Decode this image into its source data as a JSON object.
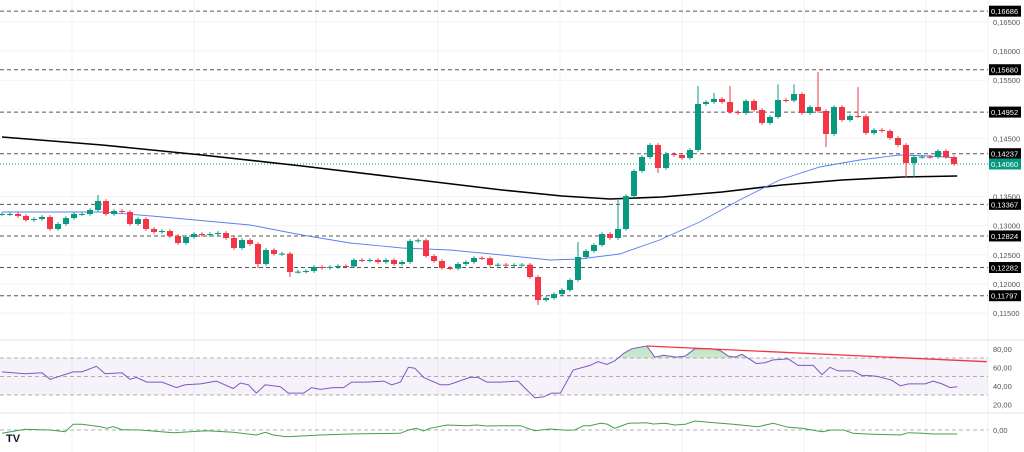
{
  "chart_data": [
    {
      "type": "candlestick",
      "title": "",
      "ylim": [
        0.1135,
        0.169
      ],
      "grid": true,
      "price_axis_ticks": [
        "0,16500",
        "0,16000",
        "0,15500",
        "0,14500",
        "0,13500",
        "0,13000",
        "0,12500",
        "0,12000",
        "0,11500"
      ],
      "price_axis_tick_values": [
        0.165,
        0.16,
        0.155,
        0.145,
        0.135,
        0.13,
        0.125,
        0.12,
        0.115
      ],
      "levels": [
        {
          "value": 0.16686,
          "label": "0,16686"
        },
        {
          "value": 0.1568,
          "label": "0,15680"
        },
        {
          "value": 0.14952,
          "label": "0,14952"
        },
        {
          "value": 0.14237,
          "label": "0,14237"
        },
        {
          "value": 0.13367,
          "label": "0,13367"
        },
        {
          "value": 0.12824,
          "label": "0,12824"
        },
        {
          "value": 0.12282,
          "label": "0,12282"
        },
        {
          "value": 0.11797,
          "label": "0,11797"
        }
      ],
      "last_price": {
        "value": 0.1406,
        "label": "0,14060"
      },
      "close": [
        0.13201,
        0.13201,
        0.13167,
        0.13098,
        0.13115,
        0.1315,
        0.12943,
        0.13029,
        0.13132,
        0.13201,
        0.13201,
        0.1327,
        0.13424,
        0.13201,
        0.13253,
        0.13236,
        0.13029,
        0.13115,
        0.12943,
        0.12892,
        0.12909,
        0.12823,
        0.12703,
        0.12806,
        0.12857,
        0.1284,
        0.12857,
        0.12875,
        0.12789,
        0.12617,
        0.12754,
        0.12686,
        0.12342,
        0.12582,
        0.12514,
        0.1252,
        0.12204,
        0.1221,
        0.12222,
        0.1229,
        0.12273,
        0.1229,
        0.12308,
        0.123,
        0.12411,
        0.12405,
        0.12411,
        0.12376,
        0.12411,
        0.12342,
        0.12376,
        0.12737,
        0.1275,
        0.12479,
        0.12393,
        0.12273,
        0.12265,
        0.12342,
        0.12376,
        0.12445,
        0.1244,
        0.12325,
        0.1233,
        0.1232,
        0.12325,
        0.1233,
        0.12118,
        0.11723,
        0.11758,
        0.11826,
        0.11895,
        0.12067,
        0.12462,
        0.12565,
        0.12668,
        0.12857,
        0.12789,
        0.12943,
        0.1351,
        0.1394,
        0.1418,
        0.14387,
        0.13991,
        0.14232,
        0.14215,
        0.14163,
        0.14301,
        0.15091,
        0.15125,
        0.15177,
        0.15125,
        0.14954,
        0.14936,
        0.15143,
        0.14988,
        0.14765,
        0.14868,
        0.1516,
        0.1515,
        0.15263,
        0.14936,
        0.1504,
        0.14971,
        0.14576,
        0.1504,
        0.14816,
        0.14885,
        0.1488,
        0.14593,
        0.14644,
        0.14627,
        0.14507,
        0.14387,
        0.14077,
        0.1418,
        0.14185,
        0.1418,
        0.14284,
        0.1418,
        0.1406
      ],
      "high_overrides": {
        "12": 0.13527,
        "72": 0.1272,
        "77": 0.1344,
        "87": 0.154,
        "89": 0.1528,
        "91": 0.154,
        "97": 0.1543,
        "99": 0.1543,
        "102": 0.1564,
        "107": 0.1538
      },
      "low_overrides": {
        "32": 0.12273,
        "36": 0.1212,
        "67": 0.11637,
        "82": 0.13906,
        "103": 0.14352,
        "113": 0.1382,
        "114": 0.1382
      },
      "moving_averages": [
        {
          "color": "#000000",
          "points": [
            [
              0,
              0.14524
            ],
            [
              12.5,
              0.14387
            ],
            [
              25,
              0.14215
            ],
            [
              37.5,
              0.14026
            ],
            [
              50,
              0.1382
            ],
            [
              62.5,
              0.13613
            ],
            [
              70,
              0.1351
            ],
            [
              76,
              0.13459
            ],
            [
              82.5,
              0.13493
            ],
            [
              90,
              0.13579
            ],
            [
              97.5,
              0.13699
            ],
            [
              105,
              0.13785
            ],
            [
              112.5,
              0.13837
            ],
            [
              119.4,
              0.13854
            ]
          ]
        },
        {
          "color": "#5b7ff2",
          "points": [
            [
              0,
              0.13236
            ],
            [
              12.5,
              0.13236
            ],
            [
              18.7,
              0.13167
            ],
            [
              31,
              0.13012
            ],
            [
              37.5,
              0.1284
            ],
            [
              43.5,
              0.12703
            ],
            [
              50,
              0.12617
            ],
            [
              56,
              0.12582
            ],
            [
              62.5,
              0.12497
            ],
            [
              68.5,
              0.12411
            ],
            [
              72.2,
              0.12428
            ],
            [
              77.2,
              0.12514
            ],
            [
              82.2,
              0.12754
            ],
            [
              87.2,
              0.13064
            ],
            [
              92.2,
              0.13442
            ],
            [
              97.2,
              0.13785
            ],
            [
              102.2,
              0.14009
            ],
            [
              107.2,
              0.14129
            ],
            [
              112.2,
              0.14215
            ],
            [
              116,
              0.14198
            ],
            [
              119.4,
              0.14163
            ]
          ]
        }
      ],
      "colors": {
        "up": "#089981",
        "down": "#f23645",
        "level_box": "#000000",
        "last_price": "#089981"
      }
    },
    {
      "type": "line",
      "title": "",
      "ylim": [
        10,
        90
      ],
      "ticks": [
        "80,00",
        "60,00",
        "40,00",
        "20,00"
      ],
      "tick_values": [
        80,
        60,
        40,
        20
      ],
      "band": [
        30,
        70
      ],
      "midline": 50,
      "color": "#7e57c2",
      "points": [
        [
          0,
          55
        ],
        [
          2.9,
          53
        ],
        [
          5.0,
          54
        ],
        [
          6.0,
          47
        ],
        [
          8.9,
          55
        ],
        [
          10.0,
          55
        ],
        [
          11.8,
          61
        ],
        [
          12.9,
          53
        ],
        [
          15.0,
          54
        ],
        [
          16.0,
          47
        ],
        [
          16.8,
          49
        ],
        [
          18.1,
          44
        ],
        [
          20.0,
          44
        ],
        [
          21.8,
          38
        ],
        [
          22.9,
          41
        ],
        [
          24.8,
          42
        ],
        [
          26.8,
          45
        ],
        [
          28.9,
          37
        ],
        [
          29.8,
          43
        ],
        [
          30.8,
          41
        ],
        [
          31.8,
          32
        ],
        [
          32.9,
          41
        ],
        [
          34.8,
          39
        ],
        [
          35.8,
          32
        ],
        [
          37.7,
          32
        ],
        [
          38.7,
          38
        ],
        [
          39.8,
          36
        ],
        [
          41.4,
          38
        ],
        [
          42.7,
          38
        ],
        [
          43.7,
          44
        ],
        [
          45.6,
          44
        ],
        [
          47.7,
          45
        ],
        [
          48.7,
          41
        ],
        [
          49.8,
          44
        ],
        [
          50.8,
          60
        ],
        [
          51.6,
          59
        ],
        [
          52.7,
          49
        ],
        [
          54.8,
          41
        ],
        [
          55.8,
          41
        ],
        [
          56.8,
          44
        ],
        [
          58.5,
          49
        ],
        [
          59.5,
          49
        ],
        [
          60.6,
          44
        ],
        [
          62.3,
          44
        ],
        [
          64.5,
          45
        ],
        [
          66.6,
          27
        ],
        [
          67.7,
          28
        ],
        [
          68.7,
          32
        ],
        [
          69.8,
          32
        ],
        [
          71.4,
          57
        ],
        [
          73.5,
          62
        ],
        [
          74.5,
          66
        ],
        [
          75.6,
          63
        ],
        [
          76.6,
          67
        ],
        [
          77.7,
          75
        ],
        [
          78.7,
          80
        ],
        [
          80.6,
          83
        ],
        [
          81.6,
          71
        ],
        [
          82.7,
          73
        ],
        [
          84.3,
          71
        ],
        [
          85.4,
          72
        ],
        [
          86.6,
          80
        ],
        [
          88.7,
          80
        ],
        [
          89.8,
          78
        ],
        [
          90.8,
          72
        ],
        [
          91.6,
          71
        ],
        [
          92.5,
          74
        ],
        [
          94.3,
          64
        ],
        [
          95.4,
          65
        ],
        [
          96.4,
          68
        ],
        [
          98.3,
          69
        ],
        [
          99.5,
          62
        ],
        [
          101.4,
          62
        ],
        [
          102.5,
          52
        ],
        [
          103.5,
          60
        ],
        [
          104.5,
          56
        ],
        [
          106.4,
          56
        ],
        [
          107.5,
          51
        ],
        [
          108.5,
          51
        ],
        [
          109.5,
          50
        ],
        [
          111.2,
          46
        ],
        [
          112.3,
          40
        ],
        [
          113.3,
          42
        ],
        [
          115.4,
          42
        ],
        [
          116.4,
          45
        ],
        [
          117.5,
          42
        ],
        [
          118.5,
          38
        ],
        [
          119.4,
          39
        ]
      ],
      "trendline": {
        "color": "#f23645",
        "from": [
          80.6,
          83
        ],
        "to": [
          123.1,
          66
        ]
      },
      "overbought_fill_color": "#4caf50"
    },
    {
      "type": "line",
      "title": "",
      "ticks": [
        "0,00"
      ],
      "tick_values": [
        0
      ],
      "color": "#43a047",
      "points": [
        [
          0,
          -0.0033
        ],
        [
          2.9,
          0.0007
        ],
        [
          6.0,
          0.0
        ],
        [
          7.9,
          -0.0017
        ],
        [
          8.9,
          0.0057
        ],
        [
          10.0,
          0.0057
        ],
        [
          12.3,
          0.0033
        ],
        [
          13.1,
          0.0017
        ],
        [
          13.9,
          0.0033
        ],
        [
          15.0,
          0.0003
        ],
        [
          17.3,
          0.0
        ],
        [
          21.4,
          -0.0027
        ],
        [
          25.6,
          -0.0007
        ],
        [
          28.9,
          -0.0023
        ],
        [
          31.8,
          -0.005
        ],
        [
          32.9,
          -0.0023
        ],
        [
          33.9,
          -0.005
        ],
        [
          35.6,
          -0.0067
        ],
        [
          39.8,
          -0.005
        ],
        [
          43.5,
          -0.004
        ],
        [
          49.8,
          -0.0033
        ],
        [
          50.8,
          0.0
        ],
        [
          51.8,
          0.0017
        ],
        [
          52.7,
          -0.001
        ],
        [
          53.5,
          0.0017
        ],
        [
          55.6,
          0.005
        ],
        [
          58.1,
          0.0043
        ],
        [
          59.3,
          0.005
        ],
        [
          60.6,
          0.004
        ],
        [
          62.3,
          0.0043
        ],
        [
          64.8,
          0.0043
        ],
        [
          66.6,
          -0.0007
        ],
        [
          68.5,
          0.001
        ],
        [
          70.6,
          -0.0003
        ],
        [
          71.6,
          0.0
        ],
        [
          72.7,
          0.0043
        ],
        [
          73.5,
          0.0043
        ],
        [
          74.8,
          0.0067
        ],
        [
          75.6,
          0.006
        ],
        [
          76.6,
          0.0017
        ],
        [
          78.3,
          0.0067
        ],
        [
          80.6,
          0.0073
        ],
        [
          81.4,
          0.006
        ],
        [
          82.9,
          0.0067
        ],
        [
          84.1,
          0.005
        ],
        [
          85.4,
          0.0057
        ],
        [
          86.6,
          0.009
        ],
        [
          88.3,
          0.0077
        ],
        [
          91.4,
          0.0057
        ],
        [
          94.5,
          0.0033
        ],
        [
          96.4,
          0.0067
        ],
        [
          98.3,
          0.0027
        ],
        [
          100.0,
          0.0017
        ],
        [
          102.5,
          -0.0017
        ],
        [
          103.7,
          0.0
        ],
        [
          105.2,
          0.0
        ],
        [
          106.4,
          -0.0033
        ],
        [
          108.1,
          -0.004
        ],
        [
          112.3,
          -0.005
        ],
        [
          113.3,
          -0.0027
        ],
        [
          115.0,
          -0.0033
        ],
        [
          116.4,
          -0.004
        ],
        [
          119.4,
          -0.004
        ]
      ]
    }
  ],
  "logo": "TV"
}
